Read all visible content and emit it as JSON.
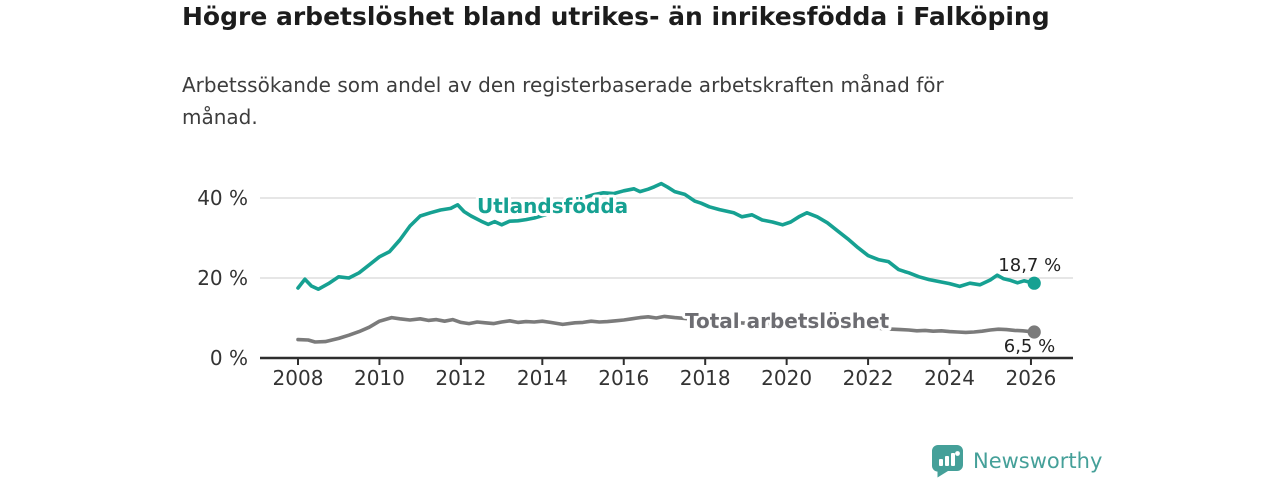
{
  "header": {
    "title": "Högre arbetslöshet bland utrikes- än inrikesfödda i Falköping",
    "subtitle": "Arbetssökande som andel av den registerbaserade arbetskraften månad för månad."
  },
  "chart_data": {
    "type": "line",
    "title": "Högre arbetslöshet bland utrikes- än inrikesfödda i Falköping",
    "xlabel": "",
    "ylabel": "",
    "x_axis": {
      "ticks": [
        2008,
        2010,
        2012,
        2014,
        2016,
        2018,
        2020,
        2022,
        2024,
        2026
      ]
    },
    "y_axis": {
      "ticks": [
        0,
        20,
        40
      ],
      "tick_labels": [
        "0 %",
        "20 %",
        "40 %"
      ],
      "range": [
        0,
        45
      ],
      "unit": "%"
    },
    "grid": "horizontal",
    "legend_position": "inline-labels",
    "series": [
      {
        "name": "Utlandsfödda",
        "color": "#16A192",
        "end_label": "18,7 %",
        "end_value": 18.7,
        "points": [
          [
            2008.0,
            17.5
          ],
          [
            2008.17,
            19.7
          ],
          [
            2008.33,
            18.0
          ],
          [
            2008.5,
            17.2
          ],
          [
            2008.75,
            18.6
          ],
          [
            2009.0,
            20.3
          ],
          [
            2009.25,
            20.0
          ],
          [
            2009.5,
            21.3
          ],
          [
            2009.75,
            23.3
          ],
          [
            2010.0,
            25.3
          ],
          [
            2010.25,
            26.6
          ],
          [
            2010.5,
            29.5
          ],
          [
            2010.75,
            33.0
          ],
          [
            2011.0,
            35.5
          ],
          [
            2011.25,
            36.3
          ],
          [
            2011.5,
            37.0
          ],
          [
            2011.75,
            37.4
          ],
          [
            2011.92,
            38.3
          ],
          [
            2012.08,
            36.6
          ],
          [
            2012.25,
            35.5
          ],
          [
            2012.5,
            34.2
          ],
          [
            2012.67,
            33.4
          ],
          [
            2012.83,
            34.1
          ],
          [
            2013.0,
            33.3
          ],
          [
            2013.2,
            34.2
          ],
          [
            2013.4,
            34.3
          ],
          [
            2013.6,
            34.6
          ],
          [
            2013.8,
            35.0
          ],
          [
            2014.0,
            35.6
          ],
          [
            2014.25,
            36.4
          ],
          [
            2014.5,
            37.5
          ],
          [
            2014.75,
            38.7
          ],
          [
            2015.0,
            40.0
          ],
          [
            2015.25,
            40.8
          ],
          [
            2015.5,
            41.3
          ],
          [
            2015.75,
            41.1
          ],
          [
            2016.0,
            41.8
          ],
          [
            2016.25,
            42.3
          ],
          [
            2016.4,
            41.6
          ],
          [
            2016.6,
            42.2
          ],
          [
            2016.75,
            42.8
          ],
          [
            2016.92,
            43.6
          ],
          [
            2017.08,
            42.7
          ],
          [
            2017.25,
            41.6
          ],
          [
            2017.5,
            40.9
          ],
          [
            2017.75,
            39.2
          ],
          [
            2017.9,
            38.7
          ],
          [
            2018.1,
            37.8
          ],
          [
            2018.35,
            37.1
          ],
          [
            2018.7,
            36.3
          ],
          [
            2018.9,
            35.3
          ],
          [
            2019.15,
            35.8
          ],
          [
            2019.4,
            34.5
          ],
          [
            2019.65,
            34.0
          ],
          [
            2019.9,
            33.3
          ],
          [
            2020.1,
            34.0
          ],
          [
            2020.3,
            35.3
          ],
          [
            2020.5,
            36.3
          ],
          [
            2020.75,
            35.3
          ],
          [
            2021.0,
            33.8
          ],
          [
            2021.25,
            31.8
          ],
          [
            2021.5,
            29.8
          ],
          [
            2021.75,
            27.6
          ],
          [
            2022.0,
            25.6
          ],
          [
            2022.25,
            24.6
          ],
          [
            2022.5,
            24.1
          ],
          [
            2022.75,
            22.1
          ],
          [
            2022.9,
            21.6
          ],
          [
            2023.0,
            21.3
          ],
          [
            2023.25,
            20.3
          ],
          [
            2023.5,
            19.6
          ],
          [
            2023.75,
            19.1
          ],
          [
            2024.0,
            18.6
          ],
          [
            2024.25,
            17.9
          ],
          [
            2024.5,
            18.7
          ],
          [
            2024.75,
            18.3
          ],
          [
            2025.0,
            19.5
          ],
          [
            2025.17,
            20.7
          ],
          [
            2025.33,
            19.8
          ],
          [
            2025.5,
            19.4
          ],
          [
            2025.67,
            18.8
          ],
          [
            2025.83,
            19.3
          ],
          [
            2026.08,
            18.7
          ]
        ]
      },
      {
        "name": "Total arbetslöshet",
        "color": "#7B7B7B",
        "end_label": "6,5 %",
        "end_value": 6.5,
        "points": [
          [
            2008.0,
            4.6
          ],
          [
            2008.25,
            4.5
          ],
          [
            2008.42,
            4.0
          ],
          [
            2008.67,
            4.1
          ],
          [
            2009.0,
            4.9
          ],
          [
            2009.25,
            5.7
          ],
          [
            2009.5,
            6.6
          ],
          [
            2009.75,
            7.7
          ],
          [
            2010.0,
            9.2
          ],
          [
            2010.3,
            10.1
          ],
          [
            2010.5,
            9.8
          ],
          [
            2010.75,
            9.5
          ],
          [
            2011.0,
            9.8
          ],
          [
            2011.2,
            9.4
          ],
          [
            2011.4,
            9.6
          ],
          [
            2011.6,
            9.2
          ],
          [
            2011.8,
            9.6
          ],
          [
            2012.0,
            8.9
          ],
          [
            2012.2,
            8.6
          ],
          [
            2012.4,
            9.0
          ],
          [
            2012.6,
            8.8
          ],
          [
            2012.8,
            8.6
          ],
          [
            2013.0,
            9.0
          ],
          [
            2013.2,
            9.3
          ],
          [
            2013.4,
            8.9
          ],
          [
            2013.6,
            9.1
          ],
          [
            2013.8,
            9.0
          ],
          [
            2014.0,
            9.2
          ],
          [
            2014.2,
            8.9
          ],
          [
            2014.5,
            8.4
          ],
          [
            2014.8,
            8.8
          ],
          [
            2015.0,
            8.9
          ],
          [
            2015.2,
            9.2
          ],
          [
            2015.4,
            9.0
          ],
          [
            2015.6,
            9.1
          ],
          [
            2015.8,
            9.3
          ],
          [
            2016.0,
            9.5
          ],
          [
            2016.2,
            9.8
          ],
          [
            2016.4,
            10.1
          ],
          [
            2016.6,
            10.3
          ],
          [
            2016.8,
            10.0
          ],
          [
            2017.0,
            10.4
          ],
          [
            2017.25,
            10.1
          ],
          [
            2017.5,
            9.9
          ],
          [
            2018.0,
            9.4
          ],
          [
            2018.5,
            9.0
          ],
          [
            2019.0,
            8.7
          ],
          [
            2019.5,
            8.6
          ],
          [
            2020.0,
            8.9
          ],
          [
            2020.5,
            9.4
          ],
          [
            2021.0,
            8.9
          ],
          [
            2021.5,
            8.4
          ],
          [
            2022.0,
            7.8
          ],
          [
            2022.4,
            7.3
          ],
          [
            2022.6,
            7.2
          ],
          [
            2022.8,
            7.1
          ],
          [
            2023.0,
            7.0
          ],
          [
            2023.2,
            6.8
          ],
          [
            2023.4,
            6.9
          ],
          [
            2023.6,
            6.7
          ],
          [
            2023.8,
            6.8
          ],
          [
            2024.0,
            6.6
          ],
          [
            2024.2,
            6.5
          ],
          [
            2024.4,
            6.4
          ],
          [
            2024.6,
            6.5
          ],
          [
            2024.8,
            6.7
          ],
          [
            2025.0,
            7.0
          ],
          [
            2025.2,
            7.2
          ],
          [
            2025.4,
            7.1
          ],
          [
            2025.6,
            6.9
          ],
          [
            2025.8,
            6.8
          ],
          [
            2026.08,
            6.5
          ]
        ]
      }
    ]
  },
  "colors": {
    "accent_teal": "#16A192",
    "line_gray": "#7B7B7B",
    "series_label_gray": "#6D6D72",
    "axis": "#2E2E2E",
    "grid": "#D8D8D8",
    "tick_text": "#333333",
    "annotation_text": "#222222",
    "logo_teal": "#45A099"
  },
  "branding": {
    "logo_text": "Newsworthy",
    "logo_icon": "bar-chart-speech-bubble-icon"
  }
}
